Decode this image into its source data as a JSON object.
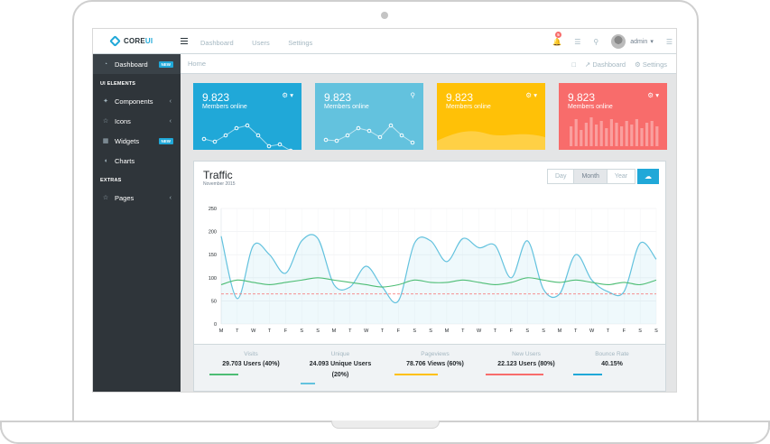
{
  "brand": {
    "core": "CORE",
    "ui": "UI"
  },
  "topnav": [
    "Dashboard",
    "Users",
    "Settings"
  ],
  "notifications": {
    "count": "5"
  },
  "user": {
    "name": "admin"
  },
  "sidebar": {
    "dashboard": {
      "label": "Dashboard",
      "tag": "NEW"
    },
    "section_ui": "UI ELEMENTS",
    "items": [
      {
        "label": "Components",
        "icon": "puzzle-icon"
      },
      {
        "label": "Icons",
        "icon": "star-icon"
      },
      {
        "label": "Widgets",
        "icon": "calculator-icon",
        "tag": "NEW"
      },
      {
        "label": "Charts",
        "icon": "pie-chart-icon"
      }
    ],
    "section_extras": "EXTRAS",
    "pages": {
      "label": "Pages"
    }
  },
  "breadcrumb": {
    "home": "Home",
    "dashboard": "Dashboard",
    "settings": "Settings"
  },
  "cards": [
    {
      "value": "9.823",
      "label": "Members online",
      "color": "#20a8d8"
    },
    {
      "value": "9.823",
      "label": "Members online",
      "color": "#63c2de"
    },
    {
      "value": "9.823",
      "label": "Members online",
      "color": "#ffc107"
    },
    {
      "value": "9.823",
      "label": "Members online",
      "color": "#f86c6b"
    }
  ],
  "traffic": {
    "title": "Traffic",
    "subtitle": "November 2015",
    "ranges": [
      "Day",
      "Month",
      "Year"
    ],
    "selected_range": "Month"
  },
  "chart_data": {
    "type": "line",
    "ylim": [
      0,
      250
    ],
    "yticks": [
      0,
      50,
      100,
      150,
      200,
      250
    ],
    "categories": [
      "M",
      "T",
      "W",
      "T",
      "F",
      "S",
      "S",
      "M",
      "T",
      "W",
      "T",
      "F",
      "S",
      "S",
      "M",
      "T",
      "W",
      "T",
      "F",
      "S",
      "S",
      "M",
      "T",
      "W",
      "T",
      "F",
      "S",
      "S"
    ],
    "series": [
      {
        "values": [
          190,
          55,
          170,
          150,
          110,
          180,
          185,
          85,
          80,
          125,
          80,
          50,
          175,
          180,
          135,
          185,
          165,
          170,
          100,
          180,
          75,
          65,
          150,
          95,
          70,
          70,
          175,
          140
        ]
      },
      {
        "values": [
          85,
          95,
          90,
          85,
          90,
          95,
          100,
          95,
          90,
          85,
          80,
          85,
          95,
          90,
          90,
          95,
          90,
          85,
          90,
          100,
          95,
          90,
          95,
          90,
          85,
          90,
          85,
          95
        ]
      },
      {
        "values": [
          65,
          65,
          65,
          65,
          65,
          65,
          65,
          65,
          65,
          65,
          65,
          65,
          65,
          65,
          65,
          65,
          65,
          65,
          65,
          65,
          65,
          65,
          65,
          65,
          65,
          65,
          65,
          65
        ]
      }
    ]
  },
  "stats": [
    {
      "label": "Visits",
      "value": "29.703 Users (40%)",
      "color": "#4dbd74"
    },
    {
      "label": "Unique",
      "value": "24.093 Unique Users (20%)",
      "color": "#63c2de"
    },
    {
      "label": "Pageviews",
      "value": "78.706 Views (60%)",
      "color": "#ffc107"
    },
    {
      "label": "New Users",
      "value": "22.123 Users (80%)",
      "color": "#f86c6b"
    },
    {
      "label": "Bounce Rate",
      "value": "40.15%",
      "color": "#20a8d8"
    }
  ]
}
